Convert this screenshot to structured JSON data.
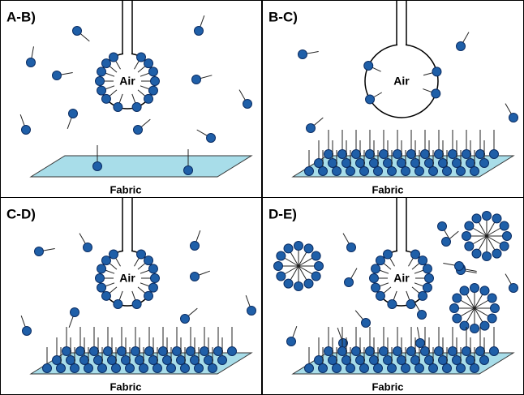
{
  "panels": [
    {
      "label": "A-B)",
      "bubble": "Air",
      "fabric": "Fabric"
    },
    {
      "label": "B-C)",
      "bubble": "Air",
      "fabric": "Fabric"
    },
    {
      "label": "C-D)",
      "bubble": "Air",
      "fabric": "Fabric"
    },
    {
      "label": "D-E)",
      "bubble": "Air",
      "fabric": "Fabric"
    }
  ]
}
